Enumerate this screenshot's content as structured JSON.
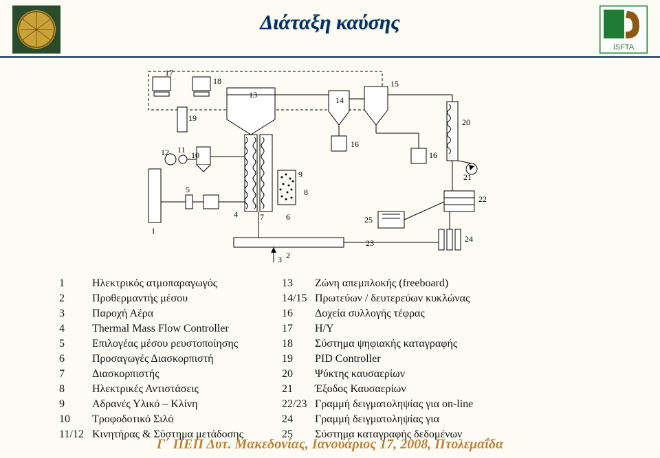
{
  "header": {
    "title": "Διάταξη καύσης",
    "title_color": "#003060",
    "rule_color": "#07304f",
    "left_logo": {
      "bg": "#2a4a2c",
      "disc": "#c9a23a"
    },
    "right_logo": {
      "bg": "#ffffff",
      "accent": "#1f7a33",
      "letter_color": "#8a5a10",
      "text": "ISFTA"
    }
  },
  "page": {
    "background": "#fcfcf4"
  },
  "diagram": {
    "labels": [
      "1",
      "2",
      "3",
      "4",
      "5",
      "6",
      "7",
      "8",
      "9",
      "10",
      "11",
      "12",
      "13",
      "14",
      "15",
      "16",
      "16",
      "17",
      "18",
      "19",
      "20",
      "21",
      "22",
      "23",
      "24",
      "25"
    ],
    "stroke": "#000000",
    "dash": "4,3",
    "fill_none": "none"
  },
  "legend": {
    "left": [
      {
        "n": "1",
        "t": "Ηλεκτρικός ατμοπαραγωγός"
      },
      {
        "n": "2",
        "t": "Προθερμαντής μέσου"
      },
      {
        "n": "3",
        "t": "Παροχή Αέρα"
      },
      {
        "n": "4",
        "t": "Thermal Mass Flow Controller"
      },
      {
        "n": "5",
        "t": "Επιλογέας μέσου ρευστοποίησης"
      },
      {
        "n": "6",
        "t": "Προσαγωγές Διασκορπιστή"
      },
      {
        "n": "7",
        "t": "Διασκορπιστής"
      },
      {
        "n": "8",
        "t": "Ηλεκτρικές Αντιστάσεις"
      },
      {
        "n": "9",
        "t": "Αδρανές Υλικό – Κλίνη"
      },
      {
        "n": "10",
        "t": "Τροφοδοτικό Σιλό"
      },
      {
        "n": "11/12",
        "t": "Κινητήρας & Σύστημα μετάδοσης"
      }
    ],
    "right": [
      {
        "n": "13",
        "t": "Ζώνη απεμπλοκής (freeboard)"
      },
      {
        "n": "14/15",
        "t": "Πρωτεύων / δευτερεύων κυκλώνας"
      },
      {
        "n": "16",
        "t": "Δοχεία συλλογής τέφρας"
      },
      {
        "n": "17",
        "t": "Η/Υ"
      },
      {
        "n": "18",
        "t": "Σύστημα ψηφιακής καταγραφής"
      },
      {
        "n": "19",
        "t": "PID Controller"
      },
      {
        "n": "20",
        "t": "Ψύκτης καυσαερίων"
      },
      {
        "n": "21",
        "t": "Έξοδος Καυσαερίων"
      },
      {
        "n": "22/23",
        "t": "Γραμμή δειγματοληψίας για on-line"
      },
      {
        "n": "24",
        "t": "Γραμμή δειγματοληψίας για"
      },
      {
        "n": "25",
        "t": "Σύστημα καταγραφής δεδομένων"
      }
    ]
  },
  "footer": {
    "text": "Γ΄ ΠΕΠ Δυτ. Μακεδονίας, Ιανουάριος 17, 2008, Πτολεμαΐδα",
    "color": "#c08030"
  }
}
